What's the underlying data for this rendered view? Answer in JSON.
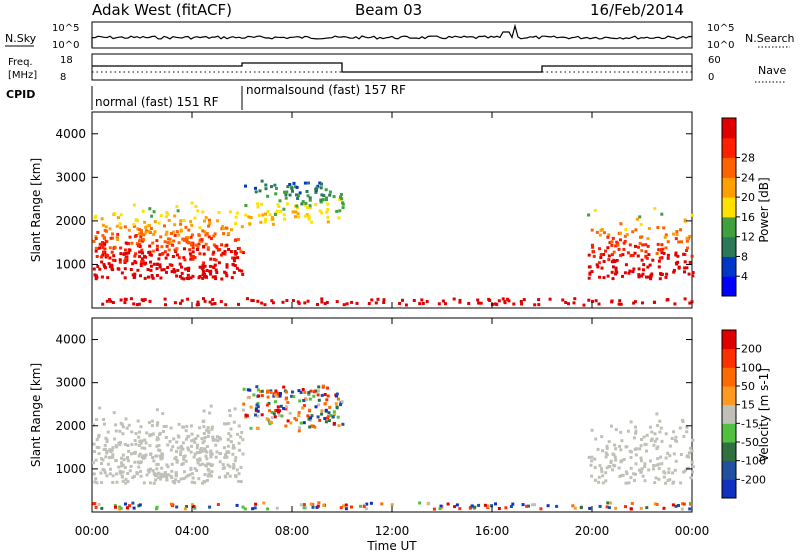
{
  "header": {
    "station": "Adak West (fitACF)",
    "beam": "Beam 03",
    "date": "16/Feb/2014"
  },
  "left_labels": {
    "nsky": "N.Sky",
    "freq_line1": "Freq.",
    "freq_line2": "[MHz]",
    "cpid": "CPID"
  },
  "right_labels": {
    "nsearch": "N.Search",
    "nave": "Nave"
  },
  "noise_axis": {
    "left_top": "10^5",
    "left_bottom": "10^0",
    "right_top": "10^5",
    "right_bottom": "10^0"
  },
  "freq_axis": {
    "left_top": "18",
    "left_bottom": "8",
    "right_top": "60",
    "right_bottom": "0"
  },
  "cpid_segments": [
    {
      "label": "normal (fast) 151 RF",
      "start_hour": 0,
      "end_hour": 6
    },
    {
      "label": "normalsound (fast) 157 RF",
      "start_hour": 6,
      "end_hour": 24
    }
  ],
  "x_ticks": [
    "00:00",
    "04:00",
    "08:00",
    "12:00",
    "16:00",
    "20:00",
    "00:00"
  ],
  "x_label": "Time UT",
  "chart_data": [
    {
      "type": "heatmap",
      "name": "power-panel",
      "ylabel": "Slant Range [km]",
      "yticks": [
        "1000",
        "2000",
        "3000",
        "4000"
      ],
      "ylim": [
        0,
        4500
      ],
      "xlim_hours": [
        0,
        24
      ],
      "colorbar": {
        "label": "Power [dB]",
        "ticks": [
          "4",
          "8",
          "12",
          "16",
          "20",
          "24",
          "28"
        ],
        "colors": [
          "#0000ff",
          "#0037c8",
          "#2a7a5a",
          "#3fa03c",
          "#ffe000",
          "#ffa000",
          "#ff6000",
          "#ff2000",
          "#e00000"
        ]
      }
    },
    {
      "type": "heatmap",
      "name": "velocity-panel",
      "ylabel": "Slant Range [km]",
      "yticks": [
        "1000",
        "2000",
        "3000",
        "4000"
      ],
      "ylim": [
        0,
        4500
      ],
      "xlim_hours": [
        0,
        24
      ],
      "colorbar": {
        "label": "Velocity [m s-1]",
        "ticks": [
          "200",
          "100",
          "50",
          "15",
          "-15",
          "-50",
          "-100",
          "-200"
        ],
        "colors": [
          "#1030c0",
          "#2050a0",
          "#307040",
          "#50c040",
          "#c0c0b8",
          "#ff9a20",
          "#ff6a00",
          "#ff3000",
          "#e00000"
        ]
      }
    }
  ]
}
